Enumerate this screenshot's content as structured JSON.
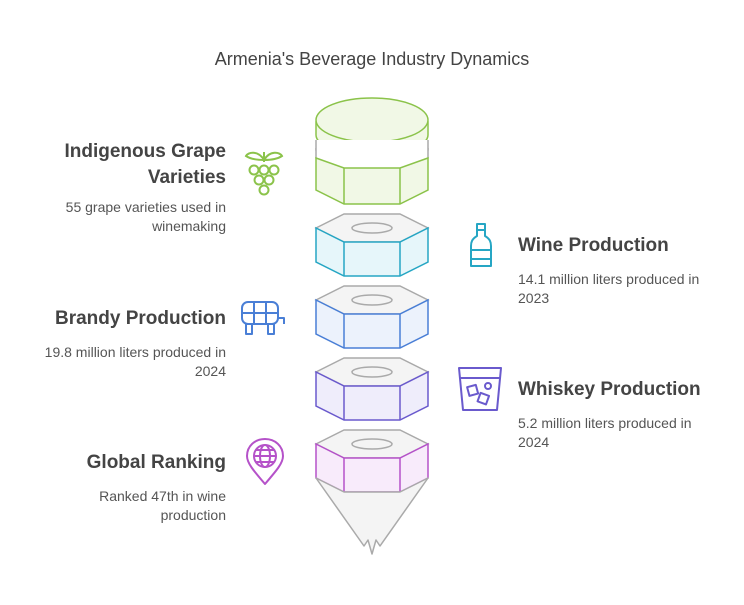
{
  "title": "Armenia's Beverage Industry Dynamics",
  "items": [
    {
      "heading_line1": "Indigenous Grape",
      "heading_line2": "Varieties",
      "desc_line1": "55 grape varieties used in",
      "desc_line2": "winemaking",
      "icon": "grapes-icon",
      "side": "left",
      "color": "#8bc34a"
    },
    {
      "heading": "Wine Production",
      "desc_line1": "14.1 million liters produced in",
      "desc_line2": "2023",
      "icon": "wine-bottle-icon",
      "side": "right",
      "color": "#26a6c4"
    },
    {
      "heading": "Brandy Production",
      "desc_line1": "19.8 million liters produced in",
      "desc_line2": "2024",
      "icon": "barrel-icon",
      "side": "left",
      "color": "#4a7fd6"
    },
    {
      "heading": "Whiskey Production",
      "desc_line1": "5.2 million liters produced in",
      "desc_line2": "2024",
      "icon": "whiskey-glass-icon",
      "side": "right",
      "color": "#6a5acd"
    },
    {
      "heading": "Global Ranking",
      "desc_line1": "Ranked 47th in wine",
      "desc_line2": "production",
      "icon": "globe-pin-icon",
      "side": "left",
      "color": "#b552c9"
    }
  ]
}
